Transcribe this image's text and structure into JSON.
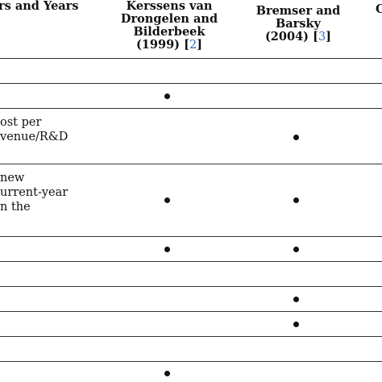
{
  "header": {
    "col0": "rs and Years",
    "col1_lines": [
      "Kerssens van",
      "Drongelen and",
      "Bilderbeek"
    ],
    "col1_year": "(1999) [",
    "col1_ref": "2",
    "col1_close": "]",
    "col2_lines": [
      "Bremser and",
      "Barsky"
    ],
    "col2_year": "(2004) [",
    "col2_ref": "3",
    "col2_close": "]",
    "col3": "C"
  },
  "rows": [
    {
      "text_lines": [],
      "col1": false,
      "col2": false
    },
    {
      "text_lines": [],
      "col1": true,
      "col2": false
    },
    {
      "text_lines": [
        "ost per",
        "venue/R&D"
      ],
      "col1": false,
      "col2": true
    },
    {
      "text_lines": [
        "new",
        "urrent-year",
        "n the"
      ],
      "col1": true,
      "col2": true
    },
    {
      "text_lines": [],
      "col1": true,
      "col2": true
    },
    {
      "text_lines": [],
      "col1": false,
      "col2": false
    },
    {
      "text_lines": [],
      "col1": false,
      "col2": true
    },
    {
      "text_lines": [],
      "col1": false,
      "col2": true
    },
    {
      "text_lines": [],
      "col1": false,
      "col2": false
    },
    {
      "text_lines": [],
      "col1": true,
      "col2": false
    }
  ],
  "bullet_symbol": "•"
}
